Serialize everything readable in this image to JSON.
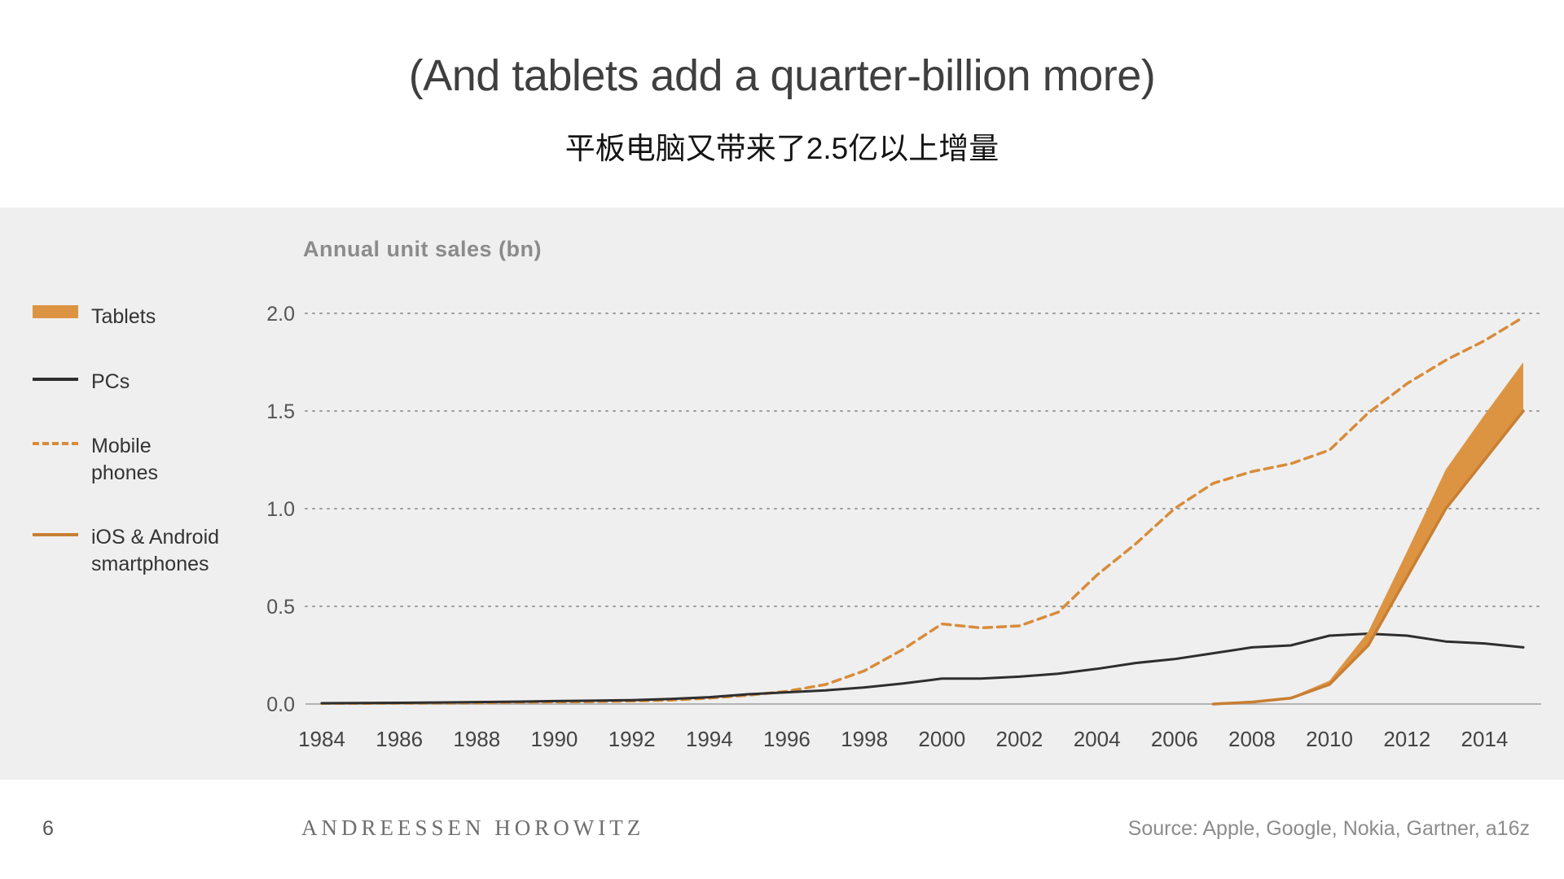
{
  "slide": {
    "title": "(And tablets add a quarter-billion more)",
    "subtitle": "平板电脑又带来了2.5亿以上增量",
    "page_number": "6",
    "brand": "ANDREESSEN HOROWITZ",
    "source": "Source: Apple, Google, Nokia, Gartner, a16z"
  },
  "chart_data": {
    "type": "line",
    "title": "Annual unit sales (bn)",
    "ylim": [
      0,
      2.0
    ],
    "yticks": [
      0.0,
      0.5,
      1.0,
      1.5,
      2.0
    ],
    "xticks": [
      1984,
      1986,
      1988,
      1990,
      1992,
      1994,
      1996,
      1998,
      2000,
      2002,
      2004,
      2006,
      2008,
      2010,
      2012,
      2014
    ],
    "grid": "dotted-horizontal",
    "legend_position": "left",
    "background": "#efefef",
    "x": [
      1984,
      1985,
      1986,
      1987,
      1988,
      1989,
      1990,
      1991,
      1992,
      1993,
      1994,
      1995,
      1996,
      1997,
      1998,
      1999,
      2000,
      2001,
      2002,
      2003,
      2004,
      2005,
      2006,
      2007,
      2008,
      2009,
      2010,
      2011,
      2012,
      2013,
      2014,
      2015
    ],
    "series": [
      {
        "name": "Tablets",
        "style": "band",
        "color": "#dd9442",
        "stack_on": "iOS & Android smartphones",
        "values": [
          null,
          null,
          null,
          null,
          null,
          null,
          null,
          null,
          null,
          null,
          null,
          null,
          null,
          null,
          null,
          null,
          null,
          null,
          null,
          null,
          null,
          null,
          null,
          0,
          0,
          0.005,
          0.02,
          0.07,
          0.13,
          0.2,
          0.23,
          0.25
        ]
      },
      {
        "name": "PCs",
        "style": "solid",
        "color": "#2e2e2e",
        "width": 3,
        "values": [
          0.004,
          0.005,
          0.006,
          0.008,
          0.01,
          0.012,
          0.015,
          0.017,
          0.02,
          0.026,
          0.035,
          0.05,
          0.06,
          0.07,
          0.085,
          0.105,
          0.13,
          0.13,
          0.14,
          0.155,
          0.18,
          0.21,
          0.23,
          0.26,
          0.29,
          0.3,
          0.35,
          0.36,
          0.35,
          0.32,
          0.31,
          0.29
        ]
      },
      {
        "name": "Mobile phones",
        "style": "dashed",
        "color": "#d88c3a",
        "width": 3.5,
        "values": [
          0.003,
          0.003,
          0.004,
          0.005,
          0.006,
          0.008,
          0.01,
          0.012,
          0.015,
          0.02,
          0.03,
          0.045,
          0.065,
          0.1,
          0.17,
          0.28,
          0.41,
          0.39,
          0.4,
          0.47,
          0.66,
          0.82,
          1.0,
          1.13,
          1.19,
          1.23,
          1.3,
          1.49,
          1.64,
          1.76,
          1.86,
          1.98
        ]
      },
      {
        "name": "iOS & Android smartphones",
        "style": "solid",
        "color": "#c87f33",
        "width": 3.5,
        "values": [
          null,
          null,
          null,
          null,
          null,
          null,
          null,
          null,
          null,
          null,
          null,
          null,
          null,
          null,
          null,
          null,
          null,
          null,
          null,
          null,
          null,
          null,
          null,
          0,
          0.01,
          0.03,
          0.1,
          0.3,
          0.65,
          1.0,
          1.25,
          1.5
        ]
      }
    ]
  }
}
